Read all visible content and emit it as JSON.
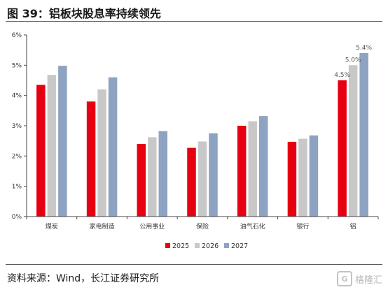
{
  "title": "图 39：铝板块股息率持续领先",
  "source": "资料来源：Wind，长江证券研究所",
  "watermark": {
    "glyph": "G",
    "text": "格隆汇"
  },
  "chart_data": {
    "type": "bar",
    "categories": [
      "煤炭",
      "家电制造",
      "公用事业",
      "保险",
      "油气石化",
      "银行",
      "铝"
    ],
    "series": [
      {
        "name": "2025",
        "color": "#e60012",
        "values": [
          4.35,
          3.8,
          2.4,
          2.27,
          3.0,
          2.47,
          4.5
        ]
      },
      {
        "name": "2026",
        "color": "#c8c8c8",
        "values": [
          4.68,
          4.2,
          2.62,
          2.48,
          3.15,
          2.57,
          5.0
        ]
      },
      {
        "name": "2027",
        "color": "#8ea3c1",
        "values": [
          4.98,
          4.6,
          2.82,
          2.75,
          3.32,
          2.68,
          5.4
        ]
      }
    ],
    "data_labels": {
      "category": "铝",
      "labels": [
        "4.5%",
        "5.0%",
        "5.4%"
      ]
    },
    "yticks": [
      "0%",
      "1%",
      "2%",
      "3%",
      "4%",
      "5%",
      "6%"
    ],
    "ylim": [
      0,
      6
    ],
    "legend_position": "bottom-center",
    "grid": false
  }
}
